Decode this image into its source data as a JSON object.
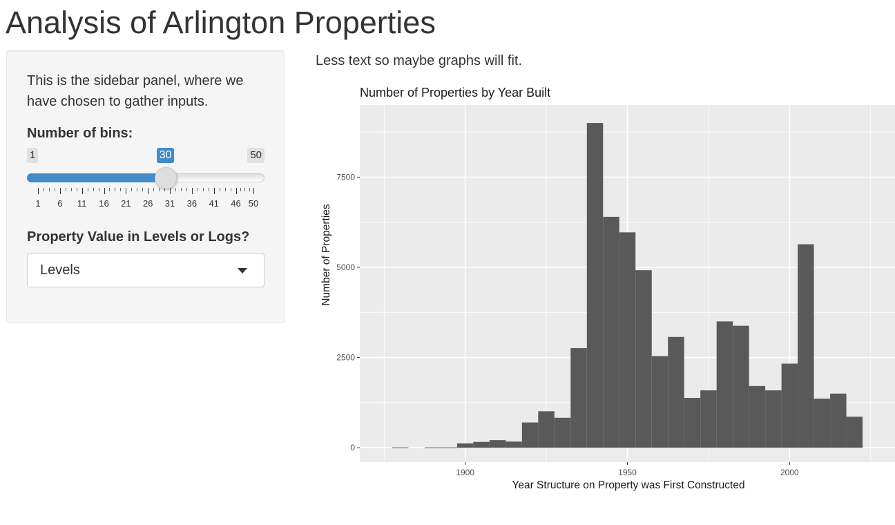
{
  "app": {
    "title": "Analysis of Arlington Properties"
  },
  "sidebar": {
    "text": "This is the sidebar panel, where we have chosen to gather inputs.",
    "bins_label": "Number of bins:",
    "bins_min": "1",
    "bins_max": "50",
    "bins_value": "30",
    "bins_fraction": 0.5918,
    "bins_ticks": [
      "1",
      "6",
      "11",
      "16",
      "21",
      "26",
      "31",
      "36",
      "41",
      "46",
      "50"
    ],
    "scale_label": "Property Value in Levels or Logs?",
    "scale_selected": "Levels"
  },
  "main": {
    "text": "Less text so maybe graphs will fit."
  },
  "colors": {
    "accent": "#428bca",
    "panel_bg": "#ebebeb",
    "bar_fill": "#595959"
  },
  "icons": {
    "select_caret": "caret-down-icon"
  },
  "chart_data": {
    "type": "bar",
    "title": "Number of Properties by Year Built",
    "xlabel": "Year Structure on Property was First Constructed",
    "ylabel": "Number of Properties",
    "bin_width": 5,
    "x": [
      1880,
      1885,
      1890,
      1895,
      1900,
      1905,
      1910,
      1915,
      1920,
      1925,
      1930,
      1935,
      1940,
      1945,
      1950,
      1955,
      1960,
      1965,
      1970,
      1975,
      1980,
      1985,
      1990,
      1995,
      2000,
      2005,
      2010,
      2015,
      2020
    ],
    "values": [
      10,
      0,
      10,
      10,
      120,
      160,
      210,
      170,
      700,
      1010,
      830,
      2760,
      9000,
      6400,
      5970,
      4920,
      2540,
      3070,
      1380,
      1590,
      3500,
      3380,
      1710,
      1590,
      2330,
      5640,
      1360,
      1500,
      860
    ],
    "xlim": [
      1867.5,
      2032.5
    ],
    "ylim": [
      -400,
      9500
    ],
    "x_ticks": [
      1900,
      1950,
      2000
    ],
    "y_ticks": [
      0,
      2500,
      5000,
      7500
    ],
    "y_tick_labels": [
      "0",
      "2500",
      "5000",
      "7500"
    ],
    "grid": true,
    "legend": "none"
  }
}
